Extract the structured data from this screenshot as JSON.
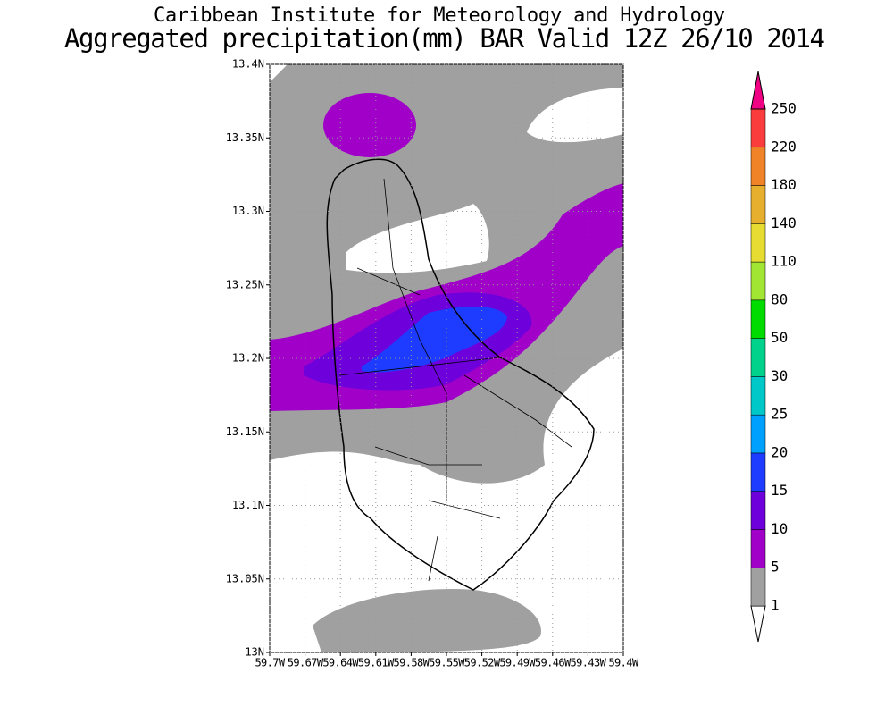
{
  "map": {
    "title": "Caribbean Institute for Meteorology and Hydrology",
    "subtitle": "Aggregated precipitation(mm) BAR Valid 12Z 26/10 2014",
    "xlim": [
      -59.7,
      -59.4
    ],
    "ylim": [
      13,
      13.4
    ],
    "xticks": [
      {
        "value": -59.7,
        "label": "59.7W"
      },
      {
        "value": -59.67,
        "label": "59.67W"
      },
      {
        "value": -59.64,
        "label": "59.64W"
      },
      {
        "value": -59.61,
        "label": "59.61W"
      },
      {
        "value": -59.58,
        "label": "59.58W"
      },
      {
        "value": -59.55,
        "label": "59.55W"
      },
      {
        "value": -59.52,
        "label": "59.52W"
      },
      {
        "value": -59.49,
        "label": "59.49W"
      },
      {
        "value": -59.46,
        "label": "59.46W"
      },
      {
        "value": -59.43,
        "label": "59.43W"
      },
      {
        "value": -59.4,
        "label": "59.4W"
      }
    ],
    "yticks": [
      {
        "value": 13,
        "label": "13N"
      },
      {
        "value": 13.05,
        "label": "13.05N"
      },
      {
        "value": 13.1,
        "label": "13.1N"
      },
      {
        "value": 13.15,
        "label": "13.15N"
      },
      {
        "value": 13.2,
        "label": "13.2N"
      },
      {
        "value": 13.25,
        "label": "13.25N"
      },
      {
        "value": 13.3,
        "label": "13.3N"
      },
      {
        "value": 13.35,
        "label": "13.35N"
      },
      {
        "value": 13.4,
        "label": "13.4N"
      }
    ],
    "grid": true,
    "colorbar": {
      "levels": [
        1,
        5,
        10,
        15,
        20,
        25,
        30,
        50,
        80,
        110,
        140,
        180,
        220,
        250
      ],
      "colors": [
        "#ffffff",
        "#a0a0a0",
        "#a000c8",
        "#6e00dc",
        "#1e3cff",
        "#00a0ff",
        "#00c8c8",
        "#00d28c",
        "#00dc00",
        "#a0e632",
        "#e6dc32",
        "#e6af2d",
        "#f08228",
        "#fa3c3c",
        "#f00082"
      ]
    }
  }
}
